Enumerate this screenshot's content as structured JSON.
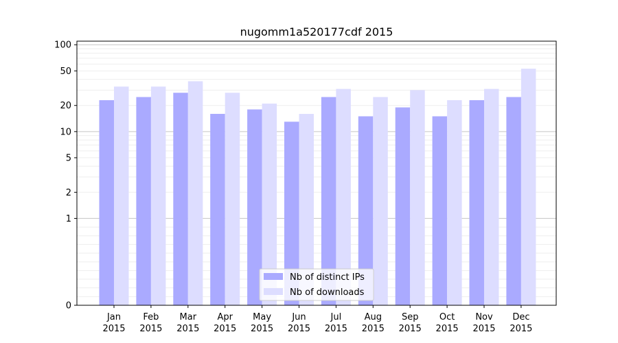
{
  "chart_data": {
    "type": "bar",
    "title": "nugomm1a520177cdf 2015",
    "xlabel": "",
    "ylabel": "",
    "yscale": "symlog",
    "ylim": [
      0,
      110
    ],
    "yticks": [
      0,
      1,
      2,
      5,
      10,
      20,
      50,
      100
    ],
    "grid": true,
    "legend_position": "bottom-center",
    "categories": [
      "Jan",
      "Feb",
      "Mar",
      "Apr",
      "May",
      "Jun",
      "Jul",
      "Aug",
      "Sep",
      "Oct",
      "Nov",
      "Dec"
    ],
    "category_year": "2015",
    "series": [
      {
        "name": "Nb of distinct IPs",
        "color": "#aaaaff",
        "values": [
          23,
          25,
          28,
          16,
          18,
          13,
          25,
          15,
          19,
          15,
          23,
          25
        ]
      },
      {
        "name": "Nb of downloads",
        "color": "#ddddff",
        "values": [
          33,
          33,
          38,
          28,
          21,
          16,
          31,
          25,
          30,
          23,
          31,
          53
        ]
      }
    ]
  }
}
